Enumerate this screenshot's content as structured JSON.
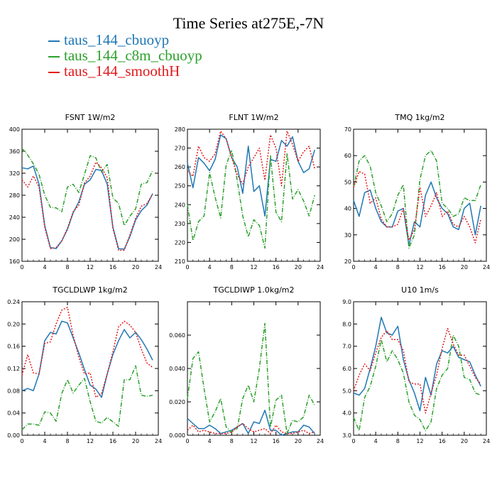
{
  "title": "Time Series at275E,-7N",
  "legend": [
    {
      "label": "taus_144_cbuoyp",
      "color": "#1f77b4"
    },
    {
      "label": "taus_144_c8m_cbuoyp",
      "color": "#2ca02c"
    },
    {
      "label": "taus_144_smoothH",
      "color": "#e31a1c"
    }
  ],
  "chart_data": [
    {
      "type": "line",
      "title": "FSNT   1W/m2",
      "x": [
        0,
        1,
        2,
        3,
        4,
        5,
        6,
        7,
        8,
        9,
        10,
        11,
        12,
        13,
        14,
        15,
        16,
        17,
        18,
        19,
        20,
        21,
        22,
        23
      ],
      "xlim": [
        0,
        24
      ],
      "xticks": [
        "0",
        "4",
        "8",
        "12",
        "16",
        "20",
        "24"
      ],
      "ylim": [
        160,
        400
      ],
      "yticks": [
        "160",
        "200",
        "240",
        "280",
        "320",
        "360",
        "400"
      ],
      "series": [
        {
          "name": "taus_144_cbuoyp",
          "color": "#1f77b4",
          "dash": "",
          "values": [
            330,
            328,
            333,
            300,
            225,
            185,
            183,
            197,
            218,
            248,
            268,
            300,
            308,
            327,
            325,
            300,
            222,
            183,
            182,
            205,
            235,
            252,
            262,
            283
          ]
        },
        {
          "name": "taus_144_c8m_cbuoyp",
          "color": "#2ca02c",
          "dash": "6,2,1,2",
          "values": [
            365,
            353,
            337,
            318,
            280,
            258,
            257,
            250,
            295,
            300,
            285,
            318,
            352,
            348,
            322,
            336,
            275,
            265,
            225,
            242,
            255,
            300,
            303,
            325
          ]
        },
        {
          "name": "taus_144_smoothH",
          "color": "#e31a1c",
          "dash": "2,2",
          "values": [
            308,
            295,
            315,
            295,
            222,
            183,
            185,
            197,
            220,
            250,
            262,
            302,
            315,
            340,
            330,
            312,
            220,
            180,
            180,
            208,
            238,
            260,
            265,
            282
          ]
        }
      ]
    },
    {
      "type": "line",
      "title": "FLNT   1W/m2",
      "x": [
        0,
        1,
        2,
        3,
        4,
        5,
        6,
        7,
        8,
        9,
        10,
        11,
        12,
        13,
        14,
        15,
        16,
        17,
        18,
        19,
        20,
        21,
        22,
        23
      ],
      "xlim": [
        0,
        24
      ],
      "xticks": [
        "0",
        "4",
        "8",
        "12",
        "16",
        "20",
        "24"
      ],
      "ylim": [
        210,
        280
      ],
      "yticks": [
        "210",
        "220",
        "230",
        "240",
        "250",
        "260",
        "270",
        "280"
      ],
      "series": [
        {
          "name": "taus_144_cbuoyp",
          "color": "#1f77b4",
          "dash": "",
          "values": [
            262,
            249,
            265,
            262,
            258,
            264,
            277,
            275,
            265,
            260,
            246,
            271,
            247,
            250,
            234,
            264,
            263,
            274,
            271,
            276,
            263,
            257,
            259,
            269
          ]
        },
        {
          "name": "taus_144_c8m_cbuoyp",
          "color": "#2ca02c",
          "dash": "6,2,1,2",
          "values": [
            240,
            221,
            231,
            234,
            257,
            244,
            233,
            261,
            269,
            253,
            234,
            223,
            232,
            229,
            217,
            266,
            236,
            231,
            267,
            243,
            248,
            242,
            234,
            245
          ]
        },
        {
          "name": "taus_144_smoothH",
          "color": "#e31a1c",
          "dash": "2,2",
          "values": [
            258,
            255,
            271,
            265,
            263,
            267,
            279,
            275,
            265,
            256,
            251,
            260,
            265,
            270,
            253,
            277,
            270,
            250,
            279,
            272,
            263,
            268,
            271,
            259
          ]
        }
      ]
    },
    {
      "type": "line",
      "title": "TMQ   1kg/m2",
      "x": [
        0,
        1,
        2,
        3,
        4,
        5,
        6,
        7,
        8,
        9,
        10,
        11,
        12,
        13,
        14,
        15,
        16,
        17,
        18,
        19,
        20,
        21,
        22,
        23
      ],
      "xlim": [
        0,
        24
      ],
      "xticks": [
        "0",
        "4",
        "8",
        "12",
        "16",
        "20",
        "24"
      ],
      "ylim": [
        20,
        70
      ],
      "yticks": [
        "20",
        "30",
        "40",
        "50",
        "60",
        "70"
      ],
      "series": [
        {
          "name": "taus_144_cbuoyp",
          "color": "#1f77b4",
          "dash": "",
          "values": [
            43,
            37,
            46,
            47,
            40,
            35,
            33,
            33,
            39,
            40,
            26,
            35,
            33,
            45,
            50,
            44,
            40,
            38,
            33,
            32,
            40,
            42,
            30,
            41
          ]
        },
        {
          "name": "taus_144_c8m_cbuoyp",
          "color": "#2ca02c",
          "dash": "6,2,1,2",
          "values": [
            48,
            58,
            60,
            56,
            46,
            41,
            35,
            38,
            45,
            49,
            25,
            30,
            51,
            60,
            62,
            58,
            42,
            40,
            37,
            38,
            44,
            43,
            43,
            49
          ]
        },
        {
          "name": "taus_144_smoothH",
          "color": "#e31a1c",
          "dash": "2,2",
          "values": [
            48,
            54,
            53,
            42,
            44,
            36,
            33,
            33,
            34,
            40,
            28,
            32,
            48,
            37,
            41,
            46,
            37,
            39,
            34,
            33,
            37,
            33,
            27,
            36
          ]
        }
      ]
    },
    {
      "type": "line",
      "title": "TGCLDLWP   1kg/m2",
      "x": [
        0,
        1,
        2,
        3,
        4,
        5,
        6,
        7,
        8,
        9,
        10,
        11,
        12,
        13,
        14,
        15,
        16,
        17,
        18,
        19,
        20,
        21,
        22,
        23
      ],
      "xlim": [
        0,
        24
      ],
      "xticks": [
        "0",
        "4",
        "8",
        "12",
        "16",
        "20",
        "24"
      ],
      "ylim": [
        0,
        0.24
      ],
      "yticks": [
        "0.00",
        "0.04",
        "0.08",
        "0.12",
        "0.16",
        "0.20",
        "0.24"
      ],
      "series": [
        {
          "name": "taus_144_cbuoyp",
          "color": "#1f77b4",
          "dash": "",
          "values": [
            0.08,
            0.084,
            0.08,
            0.11,
            0.17,
            0.185,
            0.182,
            0.205,
            0.202,
            0.175,
            0.148,
            0.118,
            0.09,
            0.083,
            0.068,
            0.11,
            0.145,
            0.17,
            0.19,
            0.175,
            0.185,
            0.172,
            0.155,
            0.135
          ]
        },
        {
          "name": "taus_144_c8m_cbuoyp",
          "color": "#2ca02c",
          "dash": "6,2,1,2",
          "values": [
            0.01,
            0.02,
            0.02,
            0.018,
            0.042,
            0.04,
            0.025,
            0.075,
            0.1,
            0.076,
            0.09,
            0.102,
            0.06,
            0.025,
            0.022,
            0.032,
            0.024,
            0.016,
            0.1,
            0.1,
            0.125,
            0.072,
            0.07,
            0.072
          ]
        },
        {
          "name": "taus_144_smoothH",
          "color": "#e31a1c",
          "dash": "2,2",
          "values": [
            0.108,
            0.145,
            0.112,
            0.11,
            0.165,
            0.168,
            0.2,
            0.225,
            0.23,
            0.18,
            0.14,
            0.11,
            0.112,
            0.068,
            0.075,
            0.11,
            0.15,
            0.195,
            0.205,
            0.198,
            0.185,
            0.155,
            0.13,
            0.122
          ]
        }
      ]
    },
    {
      "type": "line",
      "title": "TGCLDIWP   1.0kg/m2",
      "x": [
        0,
        1,
        2,
        3,
        4,
        5,
        6,
        7,
        8,
        9,
        10,
        11,
        12,
        13,
        14,
        15,
        16,
        17,
        18,
        19,
        20,
        21,
        22,
        23
      ],
      "xlim": [
        0,
        24
      ],
      "xticks": [
        "0",
        "4",
        "8",
        "12",
        "16",
        "20",
        "24"
      ],
      "ylim": [
        0,
        0.08
      ],
      "yticks": [
        "0.000",
        "0.020",
        "0.040",
        "0.060"
      ],
      "series": [
        {
          "name": "taus_144_cbuoyp",
          "color": "#1f77b4",
          "dash": "",
          "values": [
            0.01,
            0.007,
            0.004,
            0.004,
            0.006,
            0.004,
            0.001,
            0.002,
            0.003,
            0.005,
            0.007,
            0.001,
            0.008,
            0.007,
            0.015,
            0.003,
            0.003,
            0.0,
            0.001,
            0.002,
            0.002,
            0.006,
            0.005,
            0.001
          ]
        },
        {
          "name": "taus_144_c8m_cbuoyp",
          "color": "#2ca02c",
          "dash": "6,2,1,2",
          "values": [
            0.022,
            0.046,
            0.05,
            0.028,
            0.008,
            0.014,
            0.022,
            0.005,
            0.002,
            0.004,
            0.022,
            0.03,
            0.02,
            0.04,
            0.067,
            0.005,
            0.021,
            0.024,
            0.001,
            0.009,
            0.008,
            0.011,
            0.024,
            0.018
          ]
        },
        {
          "name": "taus_144_smoothH",
          "color": "#e31a1c",
          "dash": "2,2",
          "values": [
            0.003,
            0.006,
            0.002,
            0.003,
            0.002,
            0.001,
            0.001,
            0.001,
            0.002,
            0.005,
            0.007,
            0.004,
            0.002,
            0.003,
            0.004,
            0.001,
            0.006,
            0.002,
            0.001,
            0.001,
            0.002,
            0.003,
            0.001,
            0.002
          ]
        }
      ]
    },
    {
      "type": "line",
      "title": "U10   1m/s",
      "x": [
        0,
        1,
        2,
        3,
        4,
        5,
        6,
        7,
        8,
        9,
        10,
        11,
        12,
        13,
        14,
        15,
        16,
        17,
        18,
        19,
        20,
        21,
        22,
        23
      ],
      "xlim": [
        0,
        24
      ],
      "xticks": [
        "0",
        "4",
        "8",
        "12",
        "16",
        "20",
        "24"
      ],
      "ylim": [
        3.0,
        9.0
      ],
      "yticks": [
        "3.0",
        "4.0",
        "5.0",
        "6.0",
        "7.0",
        "8.0",
        "9.0"
      ],
      "series": [
        {
          "name": "taus_144_cbuoyp",
          "color": "#1f77b4",
          "dash": "",
          "values": [
            4.9,
            4.8,
            5.1,
            6.0,
            7.0,
            8.3,
            7.6,
            7.5,
            7.9,
            6.4,
            5.5,
            4.9,
            4.1,
            5.6,
            4.8,
            6.2,
            6.8,
            6.7,
            7.0,
            6.5,
            6.4,
            6.3,
            5.7,
            5.2
          ]
        },
        {
          "name": "taus_144_c8m_cbuoyp",
          "color": "#2ca02c",
          "dash": "6,2,1,2",
          "values": [
            3.8,
            3.2,
            4.7,
            5.2,
            6.1,
            7.3,
            6.3,
            6.8,
            6.4,
            5.8,
            4.5,
            3.9,
            3.7,
            3.2,
            3.6,
            5.1,
            5.7,
            6.0,
            7.5,
            7.0,
            5.6,
            5.5,
            4.9,
            4.8
          ]
        },
        {
          "name": "taus_144_smoothH",
          "color": "#e31a1c",
          "dash": "2,2",
          "values": [
            5.0,
            5.7,
            6.2,
            5.9,
            6.7,
            7.4,
            7.7,
            7.3,
            7.3,
            6.8,
            5.4,
            5.3,
            5.3,
            4.0,
            4.9,
            5.7,
            6.9,
            7.8,
            7.1,
            6.6,
            6.6,
            6.1,
            5.6,
            5.3
          ]
        }
      ]
    }
  ]
}
